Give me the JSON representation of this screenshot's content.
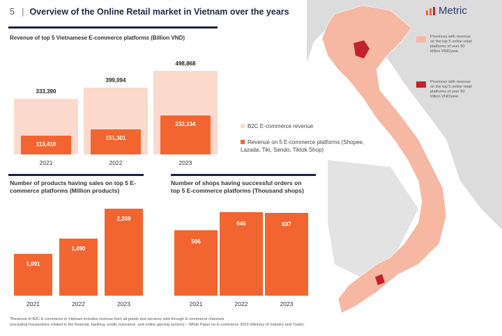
{
  "header": {
    "page_number": "5",
    "title": "Overview of the Online Retail market in Vietnam over the years"
  },
  "logo": {
    "text": "Metric"
  },
  "colors": {
    "light": "#fbd9cc",
    "dark": "#f26530",
    "map_province": "#f6b8a2",
    "map_high": "#c4212d",
    "neighbors": "#dcdcdc"
  },
  "map_legend": [
    {
      "text": "Provinces with revenue on the top 5 online retail platforms of over 50 billion VND/year.",
      "color": "#f6b8a2"
    },
    {
      "text": "Provinces with revenue on the top 5 online retail platforms of over 50 trillion VND/year.",
      "color": "#c4212d"
    }
  ],
  "chart_data": [
    {
      "type": "bar",
      "title": "Revenue of top 5 Vietnamese E-commerce platforms (Billion VND)",
      "categories": [
        "2021",
        "2022",
        "2023"
      ],
      "labels": [
        "333,390",
        "399,094",
        "498,868",
        "113,418",
        "151,301",
        "232,134"
      ],
      "series": [
        {
          "name": "B2C E-commerce revenue",
          "values": [
            333390,
            399094,
            498868
          ],
          "labels": [
            "333,390",
            "399,094",
            "498,868"
          ],
          "color": "#fbd9cc"
        },
        {
          "name": "Revenue on 5 E-commerce platforms (Shopee, Lazada, Tiki, Sendo, Tiktok Shop)",
          "values": [
            113418,
            151301,
            232134
          ],
          "labels": [
            "113,418",
            "151,301",
            "232,134"
          ],
          "color": "#f26530"
        }
      ],
      "ylim": [
        0,
        500000
      ],
      "grid": false,
      "legend": "right"
    },
    {
      "type": "bar",
      "title": "Number of products having sales on top 5 E-commerce platforms (Million products)",
      "categories": [
        "2021",
        "2022",
        "2023"
      ],
      "values": [
        1091,
        1490,
        2269
      ],
      "labels": [
        "1,091",
        "1,490",
        "2,269"
      ],
      "ylim": [
        0,
        2300
      ],
      "grid": false
    },
    {
      "type": "bar",
      "title": "Number of shops having successful orders on top 5 E-commerce platforms (Thousand shops)",
      "categories": [
        "2021",
        "2022",
        "2023"
      ],
      "values": [
        506,
        646,
        637
      ],
      "labels": [
        "506",
        "646",
        "637"
      ],
      "ylim": [
        0,
        650
      ],
      "grid": false
    }
  ],
  "footnote": {
    "line1": "*Revenue of B2C E-commerce in Vietnam includes revenue from all goods and services sold through E-commerce channels",
    "line2": "(excluding transactions related to the financial, banking, credit, insurance, and online gaming sectors) – White Paper on E-commerce 2023 (Ministry of Industry and Trade)."
  }
}
